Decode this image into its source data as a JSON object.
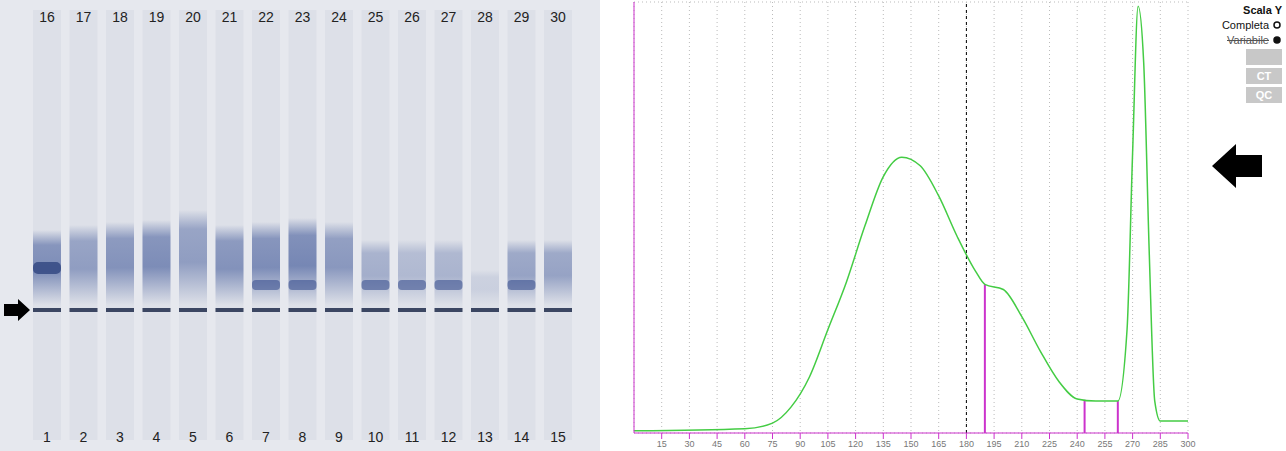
{
  "gel": {
    "lanes_top": [
      "16",
      "17",
      "18",
      "19",
      "20",
      "21",
      "22",
      "23",
      "24",
      "25",
      "26",
      "27",
      "28",
      "29",
      "30"
    ],
    "lanes_bottom": [
      "1",
      "2",
      "3",
      "4",
      "5",
      "6",
      "7",
      "8",
      "9",
      "10",
      "11",
      "12",
      "13",
      "14",
      "15"
    ]
  },
  "chart_data": {
    "type": "line",
    "x": [
      0,
      60,
      75,
      85,
      95,
      105,
      115,
      125,
      135,
      145,
      155,
      165,
      175,
      185,
      190,
      200,
      210,
      220,
      230,
      240,
      250,
      262,
      267,
      270,
      273,
      276,
      279,
      282,
      285,
      300
    ],
    "values": [
      0.5,
      1,
      2.3,
      6,
      13,
      24,
      35,
      48,
      59.5,
      64,
      62,
      55,
      45.6,
      37.5,
      34.5,
      33.3,
      27,
      19,
      12,
      7.9,
      7.4,
      7.4,
      24,
      65,
      99,
      86,
      42,
      7.4,
      2.8,
      2.8
    ],
    "color": "#44cc44",
    "xlim": [
      0,
      300
    ],
    "xticks": [
      15,
      30,
      45,
      60,
      75,
      90,
      105,
      120,
      135,
      150,
      165,
      180,
      195,
      210,
      225,
      240,
      255,
      270,
      285,
      300
    ],
    "ylim": [
      0,
      100
    ],
    "yticks": [
      0,
      10,
      20,
      30,
      40,
      50,
      60,
      70,
      80,
      90,
      100
    ],
    "grid": true,
    "tick_labels": "x",
    "boundaries": [
      {
        "x": 190,
        "y": 34.5
      },
      {
        "x": 244,
        "y": 7.7
      },
      {
        "x": 262,
        "y": 7.4
      }
    ],
    "cursor_x": 180,
    "controls": {
      "title": "Scala Y",
      "options": [
        "Completa",
        "Variabile"
      ],
      "buttons": [
        "CT",
        "QC"
      ]
    }
  }
}
